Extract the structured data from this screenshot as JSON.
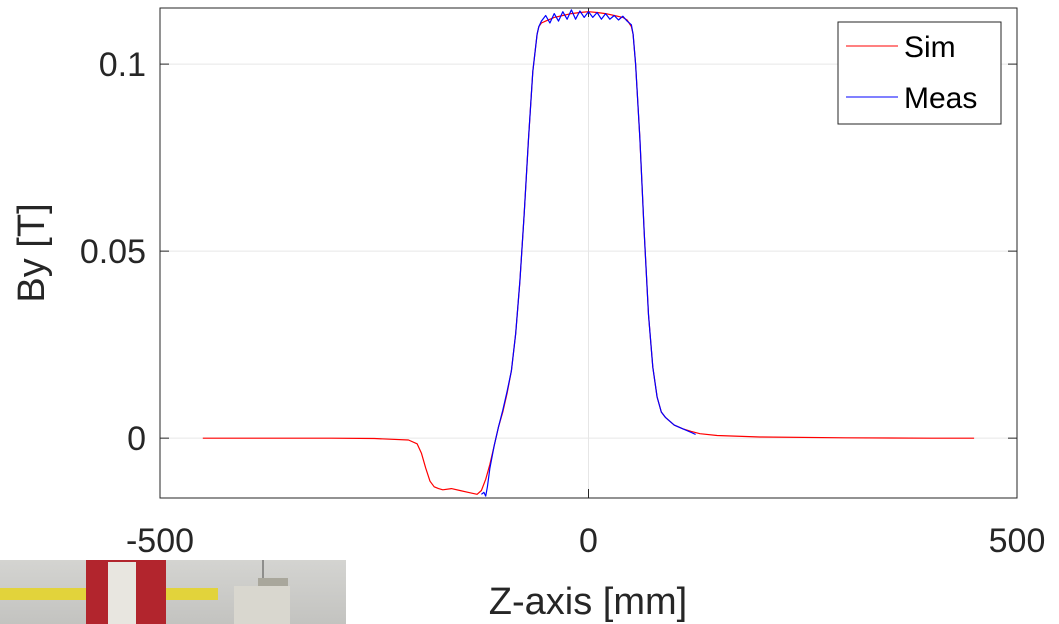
{
  "chart_data": {
    "type": "line",
    "xlabel": "Z-axis [mm]",
    "ylabel": "By [T]",
    "xlim": [
      -500,
      500
    ],
    "ylim": [
      -0.016,
      0.115
    ],
    "xticks": [
      -500,
      0,
      500
    ],
    "xtick_labels": [
      "-500",
      "0",
      "500"
    ],
    "yticks": [
      0,
      0.05,
      0.1
    ],
    "ytick_labels": [
      "0",
      "0.05",
      "0.1"
    ],
    "grid": true,
    "legend_position": "top-right",
    "series": [
      {
        "name": "Sim",
        "color": "#ff0000",
        "x": [
          -450,
          -400,
          -300,
          -250,
          -210,
          -200,
          -195,
          -190,
          -185,
          -180,
          -175,
          -170,
          -160,
          -150,
          -140,
          -130,
          -125,
          -120,
          -115,
          -110,
          -105,
          -100,
          -95,
          -90,
          -85,
          -80,
          -75,
          -70,
          -65,
          -60,
          -58,
          -55,
          -50,
          -40,
          -30,
          -20,
          -10,
          0,
          10,
          20,
          30,
          40,
          45,
          50,
          52,
          55,
          60,
          65,
          70,
          75,
          80,
          85,
          90,
          100,
          110,
          120,
          130,
          150,
          200,
          300,
          400,
          450
        ],
        "y": [
          0,
          0,
          0,
          -0.0001,
          -0.0005,
          -0.0015,
          -0.004,
          -0.008,
          -0.0115,
          -0.013,
          -0.0135,
          -0.0138,
          -0.0135,
          -0.014,
          -0.0145,
          -0.015,
          -0.014,
          -0.011,
          -0.007,
          -0.002,
          0.003,
          0.007,
          0.012,
          0.018,
          0.028,
          0.042,
          0.06,
          0.08,
          0.098,
          0.108,
          0.11,
          0.111,
          0.1115,
          0.1125,
          0.113,
          0.1135,
          0.1138,
          0.114,
          0.1138,
          0.1135,
          0.113,
          0.1125,
          0.1118,
          0.11,
          0.108,
          0.1,
          0.08,
          0.055,
          0.033,
          0.019,
          0.011,
          0.007,
          0.0055,
          0.0035,
          0.0025,
          0.0018,
          0.0012,
          0.0007,
          0.0003,
          0.0001,
          0,
          0
        ]
      },
      {
        "name": "Meas",
        "color": "#0000ff",
        "x": [
          -125,
          -122,
          -120,
          -118,
          -115,
          -110,
          -105,
          -100,
          -95,
          -90,
          -85,
          -80,
          -75,
          -70,
          -65,
          -60,
          -58,
          -55,
          -50,
          -45,
          -40,
          -35,
          -30,
          -25,
          -20,
          -15,
          -10,
          -5,
          0,
          5,
          10,
          15,
          20,
          25,
          30,
          35,
          40,
          45,
          50,
          52,
          55,
          60,
          65,
          70,
          75,
          80,
          85,
          90,
          100,
          110,
          120,
          125
        ],
        "y": [
          -0.015,
          -0.0145,
          -0.0155,
          -0.013,
          -0.008,
          -0.002,
          0.003,
          0.0075,
          0.0125,
          0.018,
          0.028,
          0.042,
          0.06,
          0.08,
          0.098,
          0.108,
          0.11,
          0.1115,
          0.113,
          0.111,
          0.1135,
          0.1115,
          0.114,
          0.112,
          0.1145,
          0.112,
          0.1142,
          0.1125,
          0.114,
          0.1125,
          0.1138,
          0.112,
          0.1135,
          0.112,
          0.113,
          0.1118,
          0.1128,
          0.1115,
          0.1105,
          0.108,
          0.1,
          0.08,
          0.055,
          0.033,
          0.019,
          0.011,
          0.007,
          0.0055,
          0.0035,
          0.0025,
          0.0015,
          0.001
        ]
      }
    ]
  }
}
